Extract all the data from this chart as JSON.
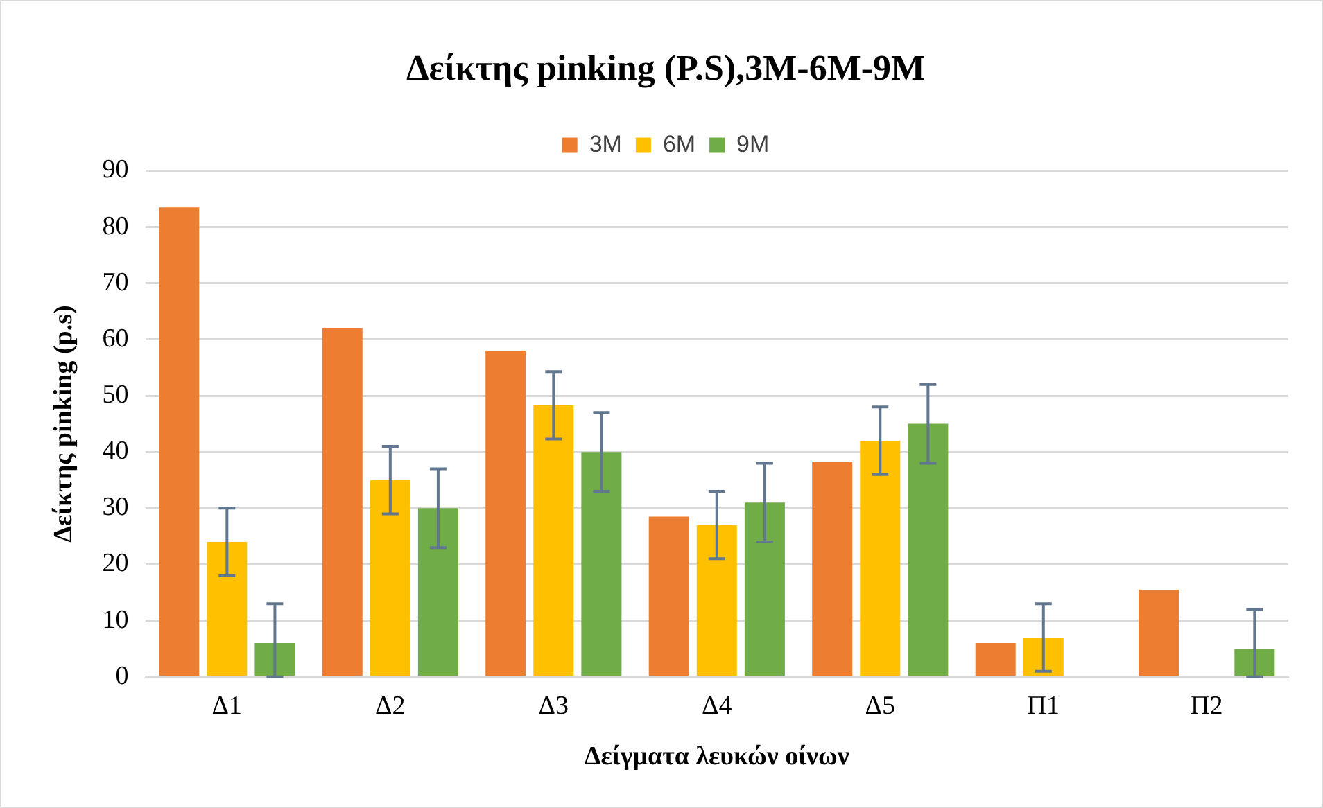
{
  "chart_data": {
    "type": "bar",
    "title": "Δείκτης pinking (P.S),3M-6M-9M",
    "xlabel": "Δείγματα λευκών οίνων",
    "ylabel": "Δείκτης pinking (p.s)",
    "categories": [
      "Δ1",
      "Δ2",
      "Δ3",
      "Δ4",
      "Δ5",
      "Π1",
      "Π2"
    ],
    "series": [
      {
        "name": "3M",
        "color": "#ed7d31",
        "values": [
          83.5,
          62,
          58,
          28.5,
          38.3,
          6,
          15.5
        ]
      },
      {
        "name": "6M",
        "color": "#ffc000",
        "values": [
          24,
          35,
          48.3,
          27,
          42,
          7,
          null
        ],
        "errors": [
          6,
          6,
          6,
          6,
          6,
          6,
          null
        ]
      },
      {
        "name": "9M",
        "color": "#70ad47",
        "values": [
          6,
          30,
          40,
          31,
          45,
          null,
          5
        ],
        "errors": [
          [
            0,
            13
          ],
          7,
          7,
          7,
          7,
          null,
          [
            0,
            12
          ]
        ]
      }
    ],
    "ylim": [
      0,
      90
    ],
    "yticks": [
      0,
      10,
      20,
      30,
      40,
      50,
      60,
      70,
      80,
      90
    ],
    "grid": "y",
    "legend": "top"
  }
}
